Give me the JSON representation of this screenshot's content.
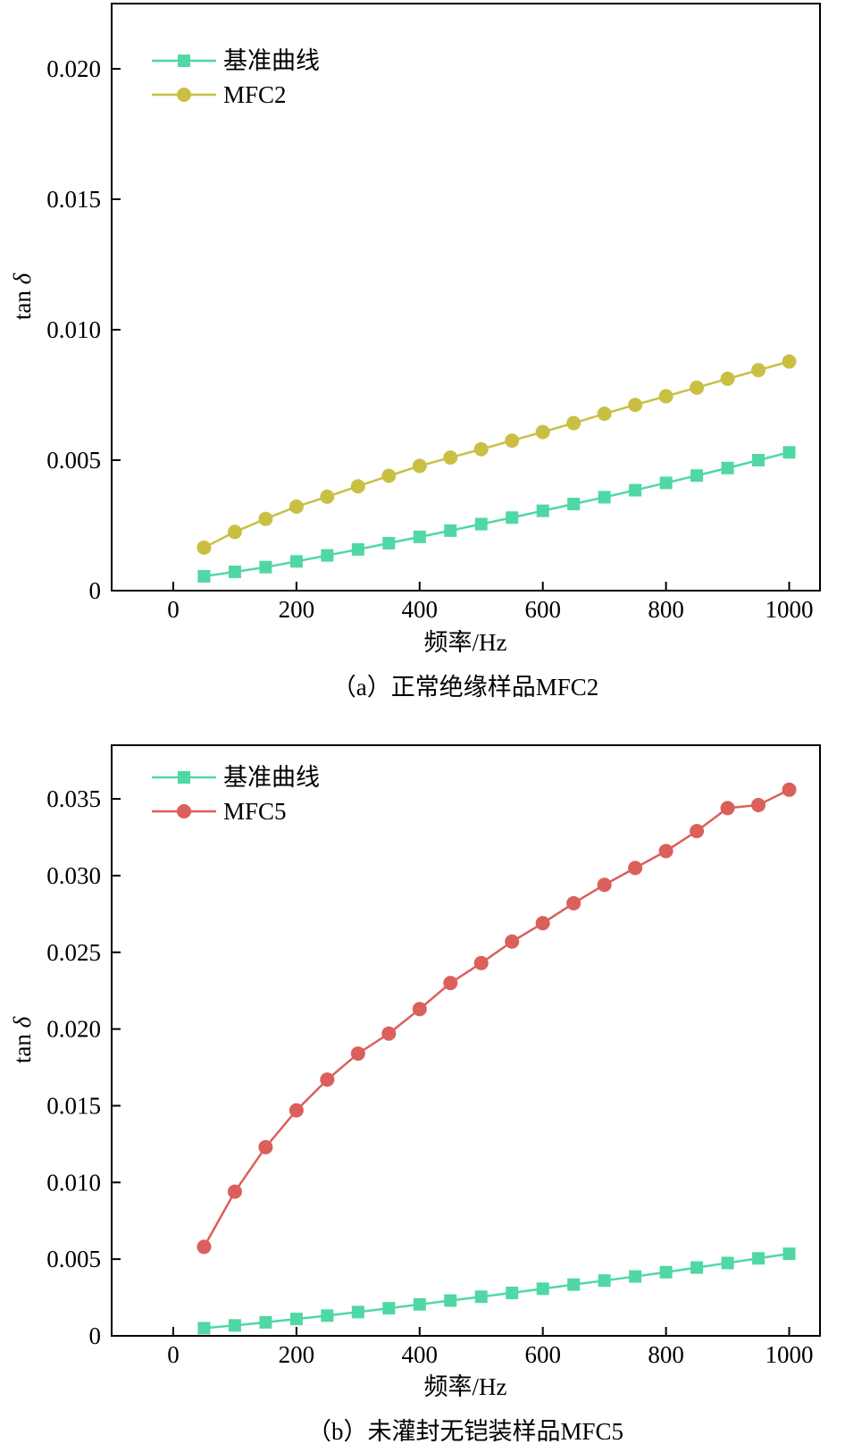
{
  "chart_data": [
    {
      "type": "line",
      "caption": "（a）正常绝缘样品MFC2",
      "xlabel": "频率/Hz",
      "ylabel_main": "tan",
      "ylabel_symbol": "δ",
      "xlim": [
        -100,
        1050
      ],
      "ylim": [
        0,
        0.0225
      ],
      "xticks": [
        "0",
        "200",
        "400",
        "600",
        "800",
        "1000"
      ],
      "yticks": [
        "0",
        "0.005",
        "0.010",
        "0.015",
        "0.020"
      ],
      "legend_position": "top-left",
      "x": [
        50,
        100,
        150,
        200,
        250,
        300,
        350,
        400,
        450,
        500,
        550,
        600,
        650,
        700,
        750,
        800,
        850,
        900,
        950,
        1000
      ],
      "series": [
        {
          "name": "基准曲线",
          "color": "#4fd8a4",
          "marker": "square",
          "values": [
            0.00055,
            0.00072,
            0.0009,
            0.00112,
            0.00135,
            0.00158,
            0.00182,
            0.00206,
            0.0023,
            0.00255,
            0.0028,
            0.00306,
            0.00332,
            0.00358,
            0.00385,
            0.00413,
            0.00441,
            0.0047,
            0.005,
            0.0053
          ]
        },
        {
          "name": "MFC2",
          "color": "#c9c043",
          "marker": "circle",
          "values": [
            0.00165,
            0.00225,
            0.00275,
            0.00322,
            0.0036,
            0.004,
            0.0044,
            0.00478,
            0.0051,
            0.00542,
            0.00575,
            0.00608,
            0.00642,
            0.00678,
            0.00712,
            0.00745,
            0.00778,
            0.00812,
            0.00845,
            0.00878
          ]
        }
      ]
    },
    {
      "type": "line",
      "caption": "（b）未灌封无铠装样品MFC5",
      "xlabel": "频率/Hz",
      "ylabel_main": "tan",
      "ylabel_symbol": "δ",
      "xlim": [
        -100,
        1050
      ],
      "ylim": [
        0,
        0.0385
      ],
      "xticks": [
        "0",
        "200",
        "400",
        "600",
        "800",
        "1000"
      ],
      "yticks": [
        "0",
        "0.005",
        "0.010",
        "0.015",
        "0.020",
        "0.025",
        "0.030",
        "0.035"
      ],
      "legend_position": "top-left",
      "x": [
        50,
        100,
        150,
        200,
        250,
        300,
        350,
        400,
        450,
        500,
        550,
        600,
        650,
        700,
        750,
        800,
        850,
        900,
        950,
        1000
      ],
      "series": [
        {
          "name": "基准曲线",
          "color": "#4fd8a4",
          "marker": "square",
          "values": [
            0.0005,
            0.00068,
            0.00088,
            0.0011,
            0.00132,
            0.00155,
            0.0018,
            0.00205,
            0.0023,
            0.00255,
            0.0028,
            0.00307,
            0.00334,
            0.0036,
            0.00387,
            0.00415,
            0.00445,
            0.00475,
            0.00505,
            0.00535
          ]
        },
        {
          "name": "MFC5",
          "color": "#db5f5a",
          "marker": "circle",
          "values": [
            0.0058,
            0.0094,
            0.0123,
            0.0147,
            0.0167,
            0.0184,
            0.0197,
            0.0213,
            0.023,
            0.0243,
            0.0257,
            0.0269,
            0.0282,
            0.0294,
            0.0305,
            0.0316,
            0.0329,
            0.0344,
            0.0346,
            0.0356
          ]
        }
      ]
    }
  ]
}
